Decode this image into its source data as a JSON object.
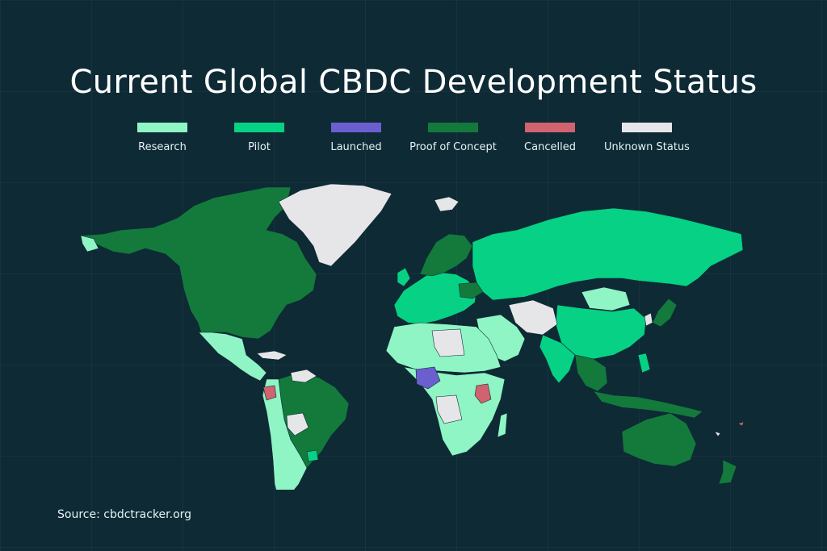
{
  "title": "Current Global CBDC Development Status",
  "source": "Source: cbdctracker.org",
  "colors": {
    "background": "#0e2a35",
    "research": "#8ff5c4",
    "pilot": "#06d184",
    "launched": "#6b5fcf",
    "proof_of_concept": "#137a3c",
    "cancelled": "#d0636f",
    "unknown": "#e6e6e8"
  },
  "legend": [
    {
      "label": "Research",
      "color": "#8ff5c4"
    },
    {
      "label": "Pilot",
      "color": "#06d184"
    },
    {
      "label": "Launched",
      "color": "#6b5fcf"
    },
    {
      "label": "Proof of Concept",
      "color": "#137a3c"
    },
    {
      "label": "Cancelled",
      "color": "#d0636f"
    },
    {
      "label": "Unknown Status",
      "color": "#e6e6e8"
    }
  ]
}
